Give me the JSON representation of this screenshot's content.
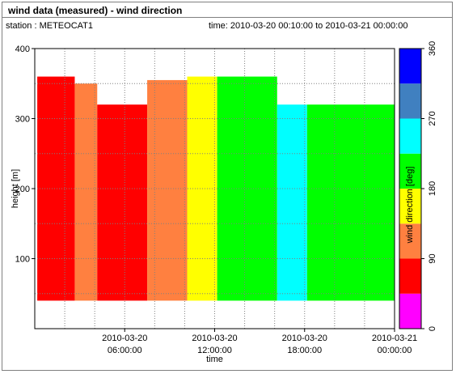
{
  "header": {
    "title": "wind data (measured) - wind direction",
    "station": "station : METEOCAT1",
    "time": "time: 2010-03-20 00:10:00 to 2010-03-21 00:00:00"
  },
  "chart_data": {
    "type": "heatmap",
    "title": "wind data (measured) - wind direction",
    "xlabel": "time",
    "ylabel": "height [m]",
    "colorbar_label": "wind direction [deg]",
    "xlim": [
      "2010-03-20 00:00:00",
      "2010-03-21 00:00:00"
    ],
    "ylim": [
      0,
      400
    ],
    "x_ticks": [
      {
        "value": "2010-03-20 06:00:00",
        "date": "2010-03-20",
        "time": "06:00:00"
      },
      {
        "value": "2010-03-20 12:00:00",
        "date": "2010-03-20",
        "time": "12:00:00"
      },
      {
        "value": "2010-03-20 18:00:00",
        "date": "2010-03-20",
        "time": "18:00:00"
      },
      {
        "value": "2010-03-21 00:00:00",
        "date": "2010-03-21",
        "time": "00:00:00"
      }
    ],
    "y_ticks": [
      "100",
      "200",
      "300",
      "400"
    ],
    "colorbar_ticks": [
      "0",
      "90",
      "180",
      "270",
      "360"
    ],
    "colorbar": [
      {
        "from": 0,
        "to": 45,
        "color": "#ff00ff"
      },
      {
        "from": 45,
        "to": 90,
        "color": "#ff0000"
      },
      {
        "from": 90,
        "to": 135,
        "color": "#ff8040"
      },
      {
        "from": 135,
        "to": 180,
        "color": "#ffff00"
      },
      {
        "from": 180,
        "to": 225,
        "color": "#00ff00"
      },
      {
        "from": 225,
        "to": 270,
        "color": "#00ffff"
      },
      {
        "from": 270,
        "to": 315,
        "color": "#4080c0"
      },
      {
        "from": 315,
        "to": 360,
        "color": "#0000ff"
      }
    ],
    "grid": true,
    "series": [
      {
        "from": "2010-03-20 00:10",
        "to": "2010-03-20 02:40",
        "height_min": 40,
        "height_max": 360,
        "direction_deg": 60
      },
      {
        "from": "2010-03-20 02:40",
        "to": "2010-03-20 04:10",
        "height_min": 40,
        "height_max": 350,
        "direction_deg": 115
      },
      {
        "from": "2010-03-20 04:10",
        "to": "2010-03-20 07:30",
        "height_min": 40,
        "height_max": 320,
        "direction_deg": 65
      },
      {
        "from": "2010-03-20 07:30",
        "to": "2010-03-20 10:10",
        "height_min": 40,
        "height_max": 355,
        "direction_deg": 115
      },
      {
        "from": "2010-03-20 10:10",
        "to": "2010-03-20 12:10",
        "height_min": 40,
        "height_max": 360,
        "direction_deg": 150
      },
      {
        "from": "2010-03-20 12:10",
        "to": "2010-03-20 16:10",
        "height_min": 40,
        "height_max": 360,
        "direction_deg": 200
      },
      {
        "from": "2010-03-20 16:10",
        "to": "2010-03-20 18:10",
        "height_min": 40,
        "height_max": 320,
        "direction_deg": 240
      },
      {
        "from": "2010-03-20 18:10",
        "to": "2010-03-21 00:00",
        "height_min": 40,
        "height_max": 320,
        "direction_deg": 195
      }
    ]
  }
}
